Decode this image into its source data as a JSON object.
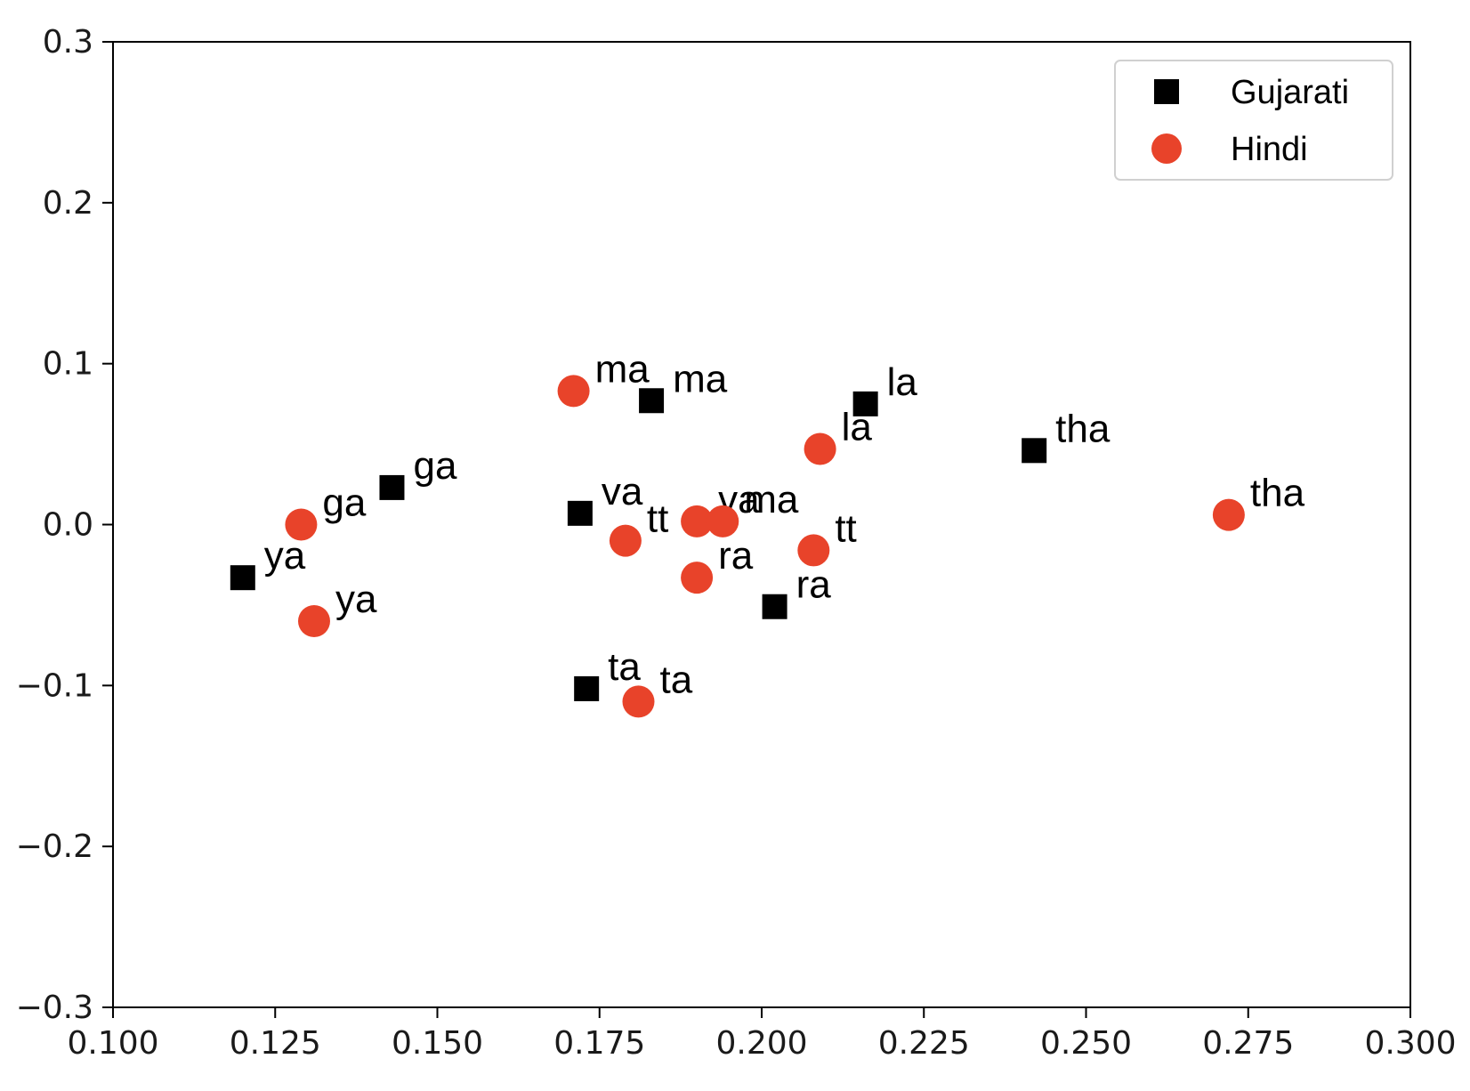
{
  "chart_data": {
    "type": "scatter",
    "title": "",
    "xlabel": "",
    "ylabel": "",
    "xlim": [
      0.1,
      0.3
    ],
    "ylim": [
      -0.3,
      0.3
    ],
    "xticks": [
      "0.100",
      "0.125",
      "0.150",
      "0.175",
      "0.200",
      "0.225",
      "0.250",
      "0.275",
      "0.300"
    ],
    "yticks": [
      "0.3",
      "0.2",
      "0.1",
      "0.0",
      "−0.1",
      "−0.2",
      "−0.3"
    ],
    "grid": false,
    "legend": {
      "placement": "top-right",
      "entries": [
        "Gujarati",
        "Hindi"
      ]
    },
    "series": [
      {
        "name": "Gujarati",
        "marker": "square",
        "color": "#000000",
        "points": [
          {
            "x": 0.183,
            "y": 0.077,
            "label": "ma"
          },
          {
            "x": 0.216,
            "y": 0.075,
            "label": "la"
          },
          {
            "x": 0.242,
            "y": 0.046,
            "label": "tha"
          },
          {
            "x": 0.143,
            "y": 0.023,
            "label": "ga"
          },
          {
            "x": 0.172,
            "y": 0.007,
            "label": "va"
          },
          {
            "x": 0.12,
            "y": -0.033,
            "label": "ya"
          },
          {
            "x": 0.202,
            "y": -0.051,
            "label": "ra"
          },
          {
            "x": 0.173,
            "y": -0.102,
            "label": "ta"
          }
        ]
      },
      {
        "name": "Hindi",
        "marker": "circle",
        "color": "#e8432a",
        "points": [
          {
            "x": 0.171,
            "y": 0.083,
            "label": "ma"
          },
          {
            "x": 0.209,
            "y": 0.047,
            "label": "la"
          },
          {
            "x": 0.272,
            "y": 0.006,
            "label": "tha"
          },
          {
            "x": 0.129,
            "y": 0.0,
            "label": "ga"
          },
          {
            "x": 0.19,
            "y": 0.002,
            "label": "va"
          },
          {
            "x": 0.194,
            "y": 0.002,
            "label": "ma"
          },
          {
            "x": 0.179,
            "y": -0.01,
            "label": "tt"
          },
          {
            "x": 0.208,
            "y": -0.016,
            "label": "tt"
          },
          {
            "x": 0.19,
            "y": -0.033,
            "label": "ra"
          },
          {
            "x": 0.131,
            "y": -0.06,
            "label": "ya"
          },
          {
            "x": 0.181,
            "y": -0.11,
            "label": "ta"
          }
        ]
      }
    ]
  }
}
